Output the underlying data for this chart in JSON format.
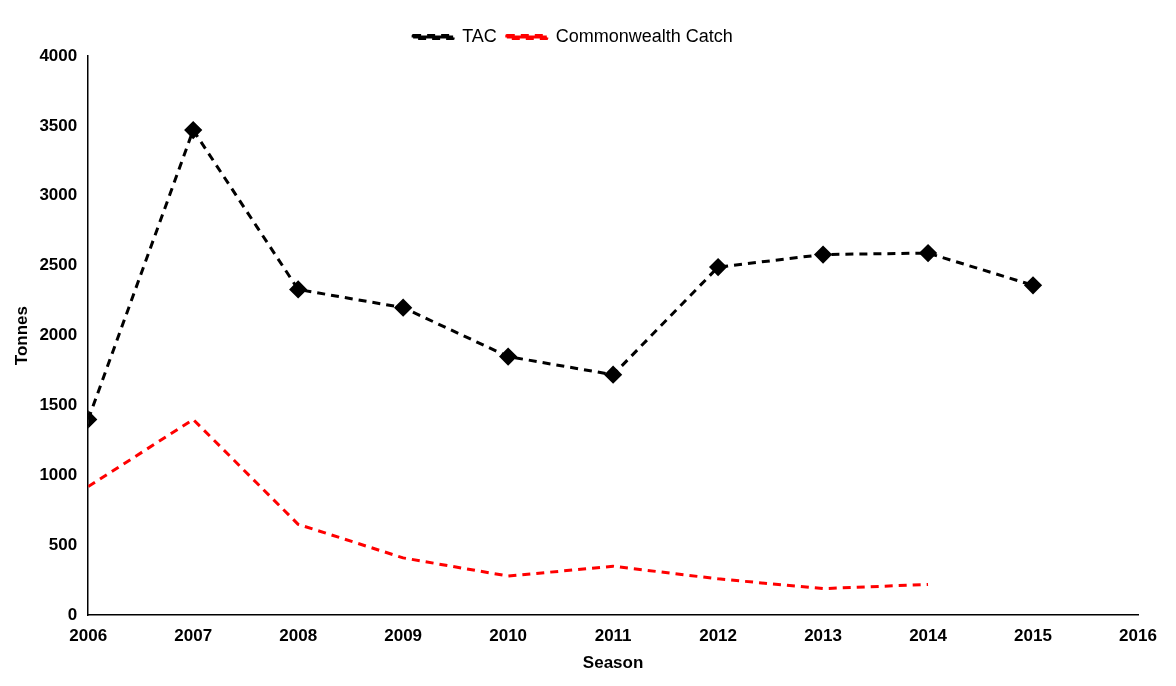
{
  "chart_data": {
    "type": "line",
    "xlabel": "Season",
    "ylabel": "Tonnes",
    "x": [
      2006,
      2007,
      2008,
      2009,
      2010,
      2011,
      2012,
      2013,
      2014,
      2015
    ],
    "series": [
      {
        "name": "TAC",
        "color": "#000000",
        "marker": "diamond",
        "line_style": "dashed",
        "values": [
          1400,
          3470,
          2330,
          2200,
          1850,
          1720,
          2490,
          2580,
          2590,
          2360
        ]
      },
      {
        "name": "Commonwealth Catch",
        "color": "#ff0000",
        "marker": "none",
        "line_style": "dashed",
        "values": [
          920,
          1400,
          650,
          410,
          280,
          350,
          260,
          190,
          220,
          null
        ]
      }
    ],
    "xlim": [
      2006,
      2016
    ],
    "xticks": [
      2006,
      2007,
      2008,
      2009,
      2010,
      2011,
      2012,
      2013,
      2014,
      2015,
      2016
    ],
    "ylim": [
      0,
      4000
    ],
    "yticks": [
      0,
      500,
      1000,
      1500,
      2000,
      2500,
      3000,
      3500,
      4000
    ],
    "grid": false,
    "legend": "top"
  }
}
